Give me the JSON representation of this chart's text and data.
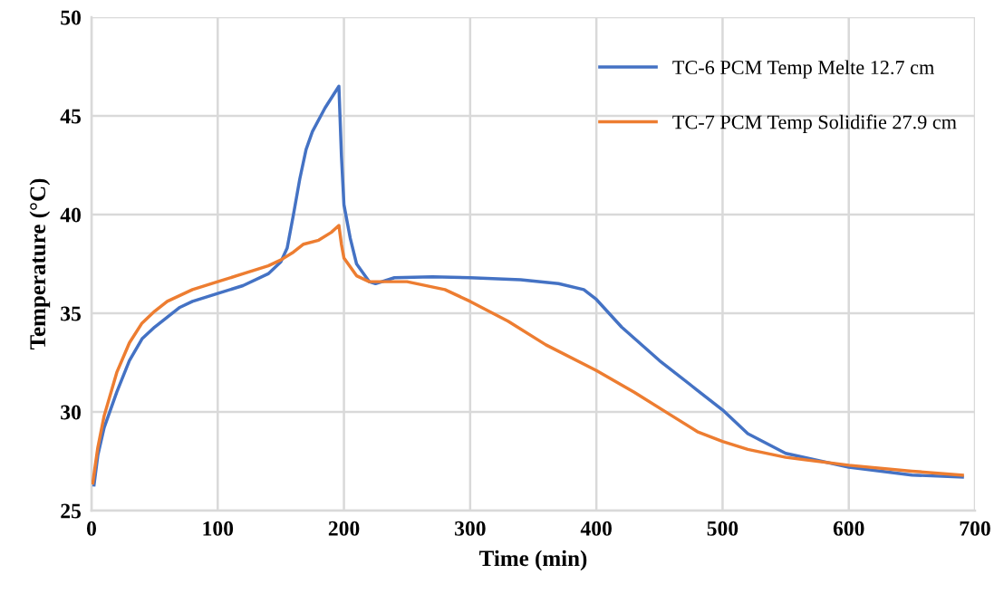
{
  "chart_data": {
    "type": "line",
    "xlabel": "Time (min)",
    "ylabel": "Temperature (°C)",
    "xlim": [
      0,
      700
    ],
    "xticks": [
      0,
      100,
      200,
      300,
      400,
      500,
      600,
      700
    ],
    "ylim": [
      25,
      50
    ],
    "yticks": [
      25,
      30,
      35,
      40,
      45,
      50
    ],
    "grid": true,
    "legend": "top right",
    "series": [
      {
        "name": "TC-6 PCM Temp Melte 12.7 cm",
        "color": "#4472c4",
        "x": [
          2,
          5,
          10,
          20,
          30,
          40,
          50,
          60,
          70,
          80,
          100,
          120,
          140,
          150,
          155,
          160,
          165,
          170,
          175,
          185,
          196,
          198,
          200,
          205,
          210,
          220,
          225,
          240,
          270,
          300,
          340,
          370,
          390,
          400,
          420,
          450,
          480,
          500,
          520,
          550,
          600,
          650,
          690
        ],
        "values": [
          26.3,
          27.8,
          29.2,
          31.0,
          32.6,
          33.7,
          34.3,
          34.8,
          35.3,
          35.6,
          36.0,
          36.4,
          37.0,
          37.6,
          38.3,
          40.0,
          41.8,
          43.3,
          44.2,
          45.4,
          46.5,
          43.0,
          40.5,
          38.8,
          37.5,
          36.6,
          36.5,
          36.8,
          36.85,
          36.8,
          36.7,
          36.5,
          36.2,
          35.7,
          34.3,
          32.6,
          31.1,
          30.1,
          28.9,
          27.9,
          27.2,
          26.8,
          26.7
        ]
      },
      {
        "name": "TC-7 PCM Temp Solidifie 27.9 cm",
        "color": "#ed7d31",
        "x": [
          1,
          5,
          10,
          20,
          30,
          40,
          50,
          60,
          80,
          100,
          120,
          140,
          150,
          160,
          168,
          180,
          190,
          196,
          198,
          200,
          210,
          220,
          250,
          280,
          300,
          330,
          360,
          400,
          430,
          460,
          480,
          500,
          520,
          550,
          600,
          650,
          690
        ],
        "values": [
          26.4,
          28.2,
          29.8,
          32.0,
          33.5,
          34.5,
          35.1,
          35.6,
          36.2,
          36.6,
          37.0,
          37.4,
          37.7,
          38.1,
          38.5,
          38.7,
          39.1,
          39.45,
          38.5,
          37.8,
          36.9,
          36.6,
          36.6,
          36.2,
          35.6,
          34.6,
          33.4,
          32.1,
          31.0,
          29.8,
          29.0,
          28.5,
          28.1,
          27.7,
          27.3,
          27.0,
          26.8
        ]
      }
    ]
  }
}
